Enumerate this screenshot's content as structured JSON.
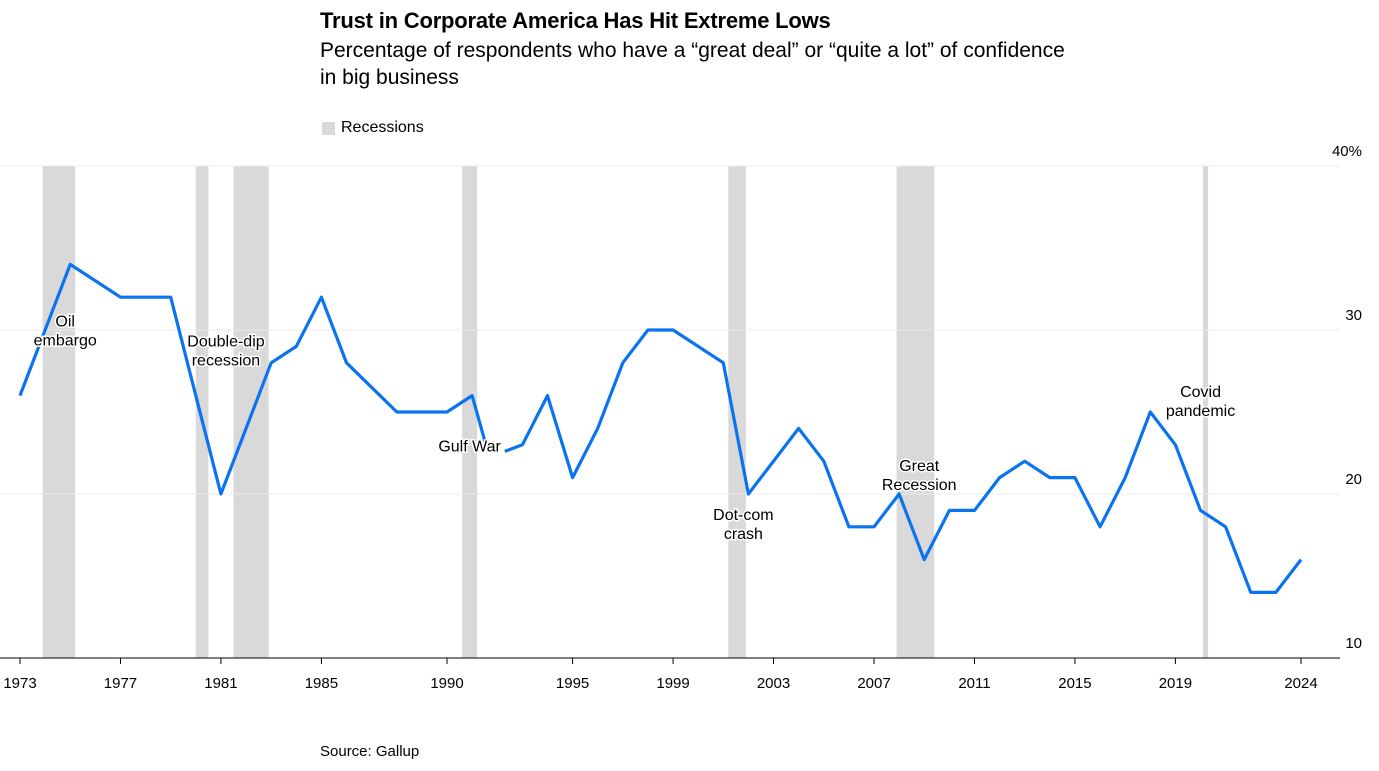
{
  "header": {
    "title": "Trust in Corporate America Has Hit Extreme Lows",
    "subtitle": "Percentage of respondents who have a “great deal” or “quite a lot” of confidence in big business"
  },
  "legend": {
    "recessions_label": "Recessions",
    "recession_color": "#d9d9d9"
  },
  "source": "Source: Gallup",
  "chart_data": {
    "type": "line",
    "title": "Trust in Corporate America Has Hit Extreme Lows",
    "subtitle": "Percentage of respondents who have a “great deal” or “quite a lot” of confidence in big business",
    "ylim": [
      10,
      40
    ],
    "xlim": [
      1973,
      2024
    ],
    "y_ticks": [
      {
        "value": 40,
        "label": "40%"
      },
      {
        "value": 30,
        "label": "30"
      },
      {
        "value": 20,
        "label": "20"
      },
      {
        "value": 10,
        "label": "10"
      }
    ],
    "x_ticks": [
      1973,
      1977,
      1981,
      1985,
      1990,
      1995,
      1999,
      2003,
      2007,
      2011,
      2015,
      2019,
      2024
    ],
    "line_color": "#0a74f0",
    "series": [
      {
        "segments": [
          [
            [
              1973,
              26
            ],
            [
              1975,
              34
            ],
            [
              1977,
              32
            ],
            [
              1978,
              32
            ],
            [
              1979,
              32
            ],
            [
              1981,
              20
            ],
            [
              1983,
              28
            ],
            [
              1984,
              29
            ],
            [
              1985,
              32
            ],
            [
              1986,
              28
            ],
            [
              1988,
              25
            ],
            [
              1989,
              25
            ],
            [
              1990,
              25
            ],
            [
              1991,
              26
            ],
            [
              1991.55,
              23
            ]
          ],
          [
            [
              1992.3,
              22.6
            ],
            [
              1993,
              23
            ],
            [
              1994,
              26
            ],
            [
              1995,
              21
            ],
            [
              1996,
              24
            ],
            [
              1997,
              28
            ],
            [
              1998,
              30
            ],
            [
              1999,
              30
            ],
            [
              2001,
              28
            ],
            [
              2002,
              20
            ],
            [
              2004,
              24
            ],
            [
              2005,
              22
            ],
            [
              2006,
              18
            ],
            [
              2007,
              18
            ],
            [
              2008,
              20
            ],
            [
              2009,
              16
            ],
            [
              2010,
              19
            ],
            [
              2011,
              19
            ],
            [
              2012,
              21
            ],
            [
              2013,
              22
            ],
            [
              2014,
              21
            ],
            [
              2015,
              21
            ],
            [
              2016,
              18
            ],
            [
              2017,
              21
            ],
            [
              2018,
              25
            ],
            [
              2019,
              23
            ],
            [
              2020,
              19
            ],
            [
              2021,
              18
            ],
            [
              2022,
              14
            ],
            [
              2023,
              14
            ],
            [
              2024,
              16
            ]
          ]
        ]
      }
    ],
    "recessions": [
      {
        "start": 1973.9,
        "end": 1975.2
      },
      {
        "start": 1980.0,
        "end": 1980.5
      },
      {
        "start": 1981.5,
        "end": 1982.9
      },
      {
        "start": 1990.6,
        "end": 1991.2
      },
      {
        "start": 2001.2,
        "end": 2001.9
      },
      {
        "start": 2007.9,
        "end": 2009.4
      },
      {
        "start": 2020.1,
        "end": 2020.3
      }
    ],
    "annotations": [
      {
        "lines": [
          "Oil",
          "embargo"
        ],
        "x": 1974.8,
        "y": 30.2
      },
      {
        "lines": [
          "Double-dip",
          "recession"
        ],
        "x": 1981.2,
        "y": 29.0
      },
      {
        "lines": [
          "Gulf War"
        ],
        "x": 1990.9,
        "y": 22.6
      },
      {
        "lines": [
          "Dot-com",
          "crash"
        ],
        "x": 2001.8,
        "y": 18.4
      },
      {
        "lines": [
          "Great",
          "Recession"
        ],
        "x": 2008.8,
        "y": 21.4
      },
      {
        "lines": [
          "Covid",
          "pandemic"
        ],
        "x": 2020.0,
        "y": 25.9
      }
    ]
  }
}
